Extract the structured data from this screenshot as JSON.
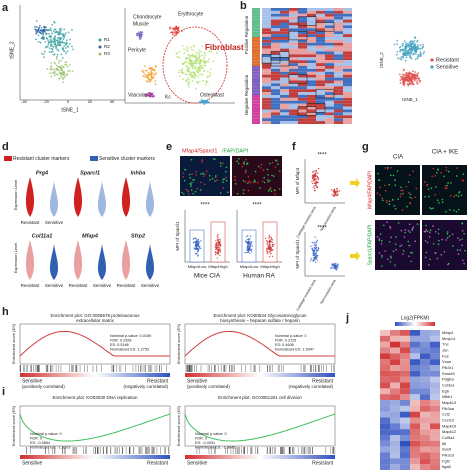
{
  "panels": {
    "a": {
      "label": "a",
      "y_axis": "tSNE_2",
      "x_axis": "tSNE_1",
      "x_ticks": [
        "-40",
        "-20",
        "0",
        "20",
        "40"
      ],
      "legend": [
        "R1",
        "R2",
        "R3"
      ],
      "cell_types": [
        "Chondrocyte",
        "Muscle",
        "Erythrocyte",
        "Pericyte",
        "Fibroblast",
        "Vascular",
        "Kc",
        "Osteoblast"
      ]
    },
    "b": {
      "label": "b",
      "groups": [
        "Positive Regulation",
        "Negative Regulation"
      ],
      "legend": [
        "Resistant",
        "Sensitive"
      ],
      "x_axis": "tSNE_1",
      "y_axis": "tSNE_2"
    },
    "d": {
      "label": "d",
      "legend": [
        "Resistant cluster markers",
        "Sensitive cluster markers"
      ],
      "genes": [
        "Prg4",
        "Sparcl1",
        "Inhba",
        "Col11a1",
        "Mfap4",
        "Sfrp2"
      ],
      "y_axis": "Expression Level",
      "groups": [
        "Resistant",
        "Sensitive"
      ]
    },
    "e": {
      "label": "e",
      "stains": [
        "Mfap4/Sparcl1",
        "/FAP/DAPI"
      ],
      "y_axis": "MFI of Sparcl1",
      "significance": [
        "****",
        "****"
      ],
      "groups": [
        "Mfap4Low",
        "Mfap4High"
      ],
      "captions": [
        "Mice CIA",
        "Human RA"
      ]
    },
    "f": {
      "label": "f",
      "y_axes": [
        "MFI of Mfap4",
        "MFI of Sparcl1"
      ],
      "significance": [
        "****",
        "****"
      ],
      "groups": [
        "Cartilage invaded area",
        "Non-invaded area"
      ]
    },
    "g": {
      "label": "g",
      "columns": [
        "CIA",
        "CIA + IKE"
      ],
      "rows": [
        "Mfap4/FAP/DAPI",
        "Sparcl1/FAP/DAPI"
      ]
    },
    "h": {
      "label": "h",
      "plots": [
        {
          "title": [
            "Enrichment plot: GO:0005578 proteinaceous",
            "extracellular matrix"
          ],
          "stats": [
            "Nominal p-value: 0.0159",
            "FDR: 0.2328",
            "ES: 0.5186",
            "Normalized ES: 1.2753"
          ]
        },
        {
          "title": [
            "Enrichment plot: KO00534 Glycosaminoglycan",
            "biosynthesis – heparan sulfate / heparin"
          ],
          "stats": [
            "Nominal p-value: 0",
            "FDR: 0.2115",
            "ES: 0.4606",
            "Normalized ES: 1.5047"
          ]
        }
      ],
      "y_axis": "Enrichment score (ES)",
      "ends": [
        "Sensitive",
        "Resistant"
      ],
      "notes": [
        "(positively correlated)",
        "(negatively correlated)"
      ]
    },
    "i": {
      "label": "i",
      "plots": [
        {
          "title": [
            "Enrichment plot: KO03030 DNA replication"
          ],
          "stats": [
            "Nominal p-value: 0",
            "FDR: 0",
            "ES: -0.5864",
            "Normalized ES: -1.9103"
          ]
        },
        {
          "title": [
            "Enrichment plot: GO:0051301 cell division"
          ],
          "stats": [
            "Nominal p-value: 0",
            "FDR: 0",
            "ES: -0.4931",
            "Normalized ES: -1.8845"
          ]
        }
      ],
      "y_axis": "Enrichment score (ES)",
      "ends": [
        "Sensitive",
        "Resistant"
      ]
    },
    "j": {
      "label": "j",
      "scale_title": "Log2(FPKM)",
      "genes": [
        "Mfap4",
        "Mmp14",
        "Tnc",
        "Jun",
        "Fos",
        "Vcan",
        "Pik3r1",
        "Smad3",
        "Pdgfra",
        "Col3a1",
        "Egfr",
        "Nfkb1",
        "Mapk13",
        "Pik3ca",
        "Ccl2",
        "Cxcl12",
        "Mapk10",
        "Mapk12",
        "Col5a1",
        "Il6",
        "Sox9",
        "Pik3cd",
        "Fgf2",
        "Itga5"
      ]
    }
  }
}
